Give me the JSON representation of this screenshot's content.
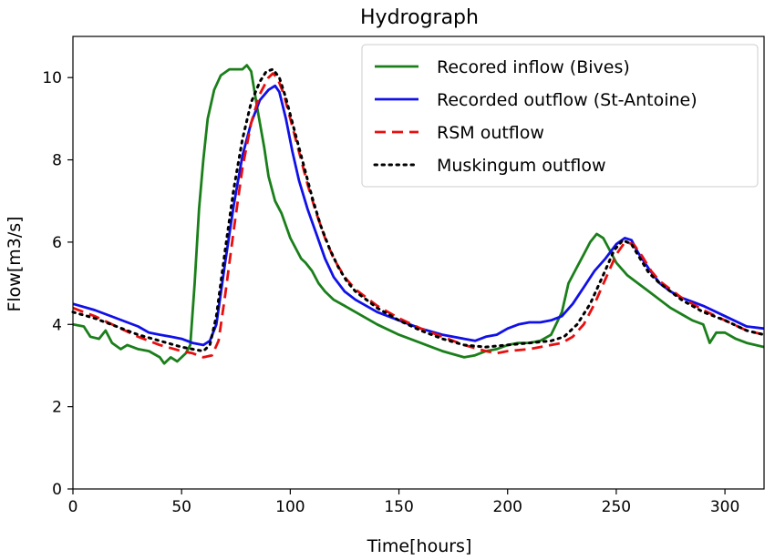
{
  "chart_data": {
    "type": "line",
    "title": "Hydrograph",
    "xlabel": "Time[hours]",
    "ylabel": "Flow[m3/s]",
    "xlim": [
      0,
      318
    ],
    "ylim": [
      0,
      11
    ],
    "xticks": [
      0,
      50,
      100,
      150,
      200,
      250,
      300
    ],
    "yticks": [
      0,
      2,
      4,
      6,
      8,
      10
    ],
    "grid": false,
    "legend_position": "top-right",
    "series": [
      {
        "name": "Recored inflow (Bives)",
        "color": "#1a7f1a",
        "style": "solid",
        "points": [
          [
            0,
            4.0
          ],
          [
            5,
            3.95
          ],
          [
            8,
            3.7
          ],
          [
            12,
            3.65
          ],
          [
            15,
            3.85
          ],
          [
            18,
            3.55
          ],
          [
            22,
            3.4
          ],
          [
            25,
            3.5
          ],
          [
            30,
            3.4
          ],
          [
            35,
            3.35
          ],
          [
            40,
            3.2
          ],
          [
            42,
            3.05
          ],
          [
            45,
            3.2
          ],
          [
            48,
            3.1
          ],
          [
            52,
            3.3
          ],
          [
            54,
            3.5
          ],
          [
            56,
            5.0
          ],
          [
            58,
            6.8
          ],
          [
            60,
            8.0
          ],
          [
            62,
            9.0
          ],
          [
            65,
            9.7
          ],
          [
            68,
            10.05
          ],
          [
            72,
            10.2
          ],
          [
            75,
            10.2
          ],
          [
            78,
            10.2
          ],
          [
            80,
            10.3
          ],
          [
            82,
            10.15
          ],
          [
            85,
            9.2
          ],
          [
            88,
            8.3
          ],
          [
            90,
            7.6
          ],
          [
            93,
            7.0
          ],
          [
            96,
            6.7
          ],
          [
            100,
            6.1
          ],
          [
            103,
            5.8
          ],
          [
            105,
            5.6
          ],
          [
            107,
            5.5
          ],
          [
            110,
            5.3
          ],
          [
            113,
            5.0
          ],
          [
            116,
            4.8
          ],
          [
            120,
            4.6
          ],
          [
            125,
            4.45
          ],
          [
            130,
            4.3
          ],
          [
            140,
            4.0
          ],
          [
            150,
            3.75
          ],
          [
            160,
            3.55
          ],
          [
            170,
            3.35
          ],
          [
            180,
            3.2
          ],
          [
            185,
            3.25
          ],
          [
            190,
            3.35
          ],
          [
            195,
            3.4
          ],
          [
            200,
            3.5
          ],
          [
            205,
            3.55
          ],
          [
            210,
            3.55
          ],
          [
            215,
            3.6
          ],
          [
            220,
            3.75
          ],
          [
            225,
            4.3
          ],
          [
            228,
            5.0
          ],
          [
            232,
            5.4
          ],
          [
            235,
            5.7
          ],
          [
            238,
            6.0
          ],
          [
            241,
            6.2
          ],
          [
            244,
            6.1
          ],
          [
            247,
            5.8
          ],
          [
            250,
            5.5
          ],
          [
            255,
            5.2
          ],
          [
            260,
            5.0
          ],
          [
            265,
            4.8
          ],
          [
            270,
            4.6
          ],
          [
            275,
            4.4
          ],
          [
            280,
            4.25
          ],
          [
            285,
            4.1
          ],
          [
            290,
            4.0
          ],
          [
            293,
            3.55
          ],
          [
            296,
            3.8
          ],
          [
            300,
            3.8
          ],
          [
            305,
            3.65
          ],
          [
            310,
            3.55
          ],
          [
            318,
            3.45
          ]
        ]
      },
      {
        "name": "Recorded outflow (St-Antoine)",
        "color": "#1010e8",
        "style": "solid",
        "points": [
          [
            0,
            4.5
          ],
          [
            10,
            4.35
          ],
          [
            20,
            4.15
          ],
          [
            30,
            3.95
          ],
          [
            35,
            3.8
          ],
          [
            40,
            3.75
          ],
          [
            45,
            3.7
          ],
          [
            50,
            3.65
          ],
          [
            55,
            3.55
          ],
          [
            60,
            3.5
          ],
          [
            63,
            3.6
          ],
          [
            66,
            4.0
          ],
          [
            70,
            5.5
          ],
          [
            74,
            6.9
          ],
          [
            78,
            8.1
          ],
          [
            82,
            8.9
          ],
          [
            86,
            9.45
          ],
          [
            90,
            9.7
          ],
          [
            93,
            9.8
          ],
          [
            95,
            9.65
          ],
          [
            98,
            9.0
          ],
          [
            101,
            8.2
          ],
          [
            104,
            7.5
          ],
          [
            108,
            6.8
          ],
          [
            112,
            6.2
          ],
          [
            116,
            5.6
          ],
          [
            120,
            5.15
          ],
          [
            125,
            4.8
          ],
          [
            130,
            4.6
          ],
          [
            140,
            4.3
          ],
          [
            150,
            4.1
          ],
          [
            160,
            3.9
          ],
          [
            170,
            3.75
          ],
          [
            180,
            3.65
          ],
          [
            185,
            3.6
          ],
          [
            190,
            3.7
          ],
          [
            195,
            3.75
          ],
          [
            200,
            3.9
          ],
          [
            205,
            4.0
          ],
          [
            210,
            4.05
          ],
          [
            215,
            4.05
          ],
          [
            220,
            4.1
          ],
          [
            225,
            4.2
          ],
          [
            230,
            4.5
          ],
          [
            235,
            4.9
          ],
          [
            240,
            5.3
          ],
          [
            245,
            5.6
          ],
          [
            250,
            5.95
          ],
          [
            254,
            6.1
          ],
          [
            257,
            6.05
          ],
          [
            260,
            5.75
          ],
          [
            265,
            5.35
          ],
          [
            270,
            5.0
          ],
          [
            275,
            4.8
          ],
          [
            280,
            4.65
          ],
          [
            290,
            4.45
          ],
          [
            300,
            4.2
          ],
          [
            310,
            3.95
          ],
          [
            318,
            3.9
          ]
        ]
      },
      {
        "name": "RSM outflow",
        "color": "#e80e0e",
        "style": "dashed",
        "points": [
          [
            0,
            4.4
          ],
          [
            10,
            4.2
          ],
          [
            20,
            3.95
          ],
          [
            30,
            3.7
          ],
          [
            40,
            3.5
          ],
          [
            50,
            3.35
          ],
          [
            55,
            3.3
          ],
          [
            60,
            3.2
          ],
          [
            64,
            3.25
          ],
          [
            67,
            3.6
          ],
          [
            70,
            4.7
          ],
          [
            74,
            6.3
          ],
          [
            78,
            7.8
          ],
          [
            82,
            8.9
          ],
          [
            86,
            9.6
          ],
          [
            90,
            10.0
          ],
          [
            92,
            10.1
          ],
          [
            94,
            10.0
          ],
          [
            97,
            9.6
          ],
          [
            100,
            9.0
          ],
          [
            104,
            8.2
          ],
          [
            108,
            7.4
          ],
          [
            112,
            6.7
          ],
          [
            116,
            6.1
          ],
          [
            120,
            5.6
          ],
          [
            125,
            5.15
          ],
          [
            130,
            4.85
          ],
          [
            140,
            4.45
          ],
          [
            150,
            4.15
          ],
          [
            160,
            3.9
          ],
          [
            170,
            3.7
          ],
          [
            180,
            3.5
          ],
          [
            190,
            3.35
          ],
          [
            195,
            3.3
          ],
          [
            200,
            3.35
          ],
          [
            210,
            3.4
          ],
          [
            220,
            3.5
          ],
          [
            225,
            3.55
          ],
          [
            230,
            3.7
          ],
          [
            235,
            4.0
          ],
          [
            240,
            4.5
          ],
          [
            245,
            5.1
          ],
          [
            250,
            5.7
          ],
          [
            254,
            6.0
          ],
          [
            258,
            5.95
          ],
          [
            262,
            5.65
          ],
          [
            266,
            5.3
          ],
          [
            270,
            5.05
          ],
          [
            275,
            4.85
          ],
          [
            280,
            4.65
          ],
          [
            290,
            4.35
          ],
          [
            300,
            4.1
          ],
          [
            310,
            3.85
          ],
          [
            318,
            3.75
          ]
        ]
      },
      {
        "name": "Muskingum outflow",
        "color": "#000000",
        "style": "dotted",
        "points": [
          [
            0,
            4.3
          ],
          [
            10,
            4.15
          ],
          [
            20,
            3.95
          ],
          [
            30,
            3.75
          ],
          [
            40,
            3.6
          ],
          [
            50,
            3.45
          ],
          [
            55,
            3.4
          ],
          [
            60,
            3.35
          ],
          [
            63,
            3.5
          ],
          [
            66,
            4.2
          ],
          [
            70,
            5.8
          ],
          [
            74,
            7.3
          ],
          [
            78,
            8.5
          ],
          [
            82,
            9.4
          ],
          [
            86,
            9.9
          ],
          [
            89,
            10.15
          ],
          [
            92,
            10.2
          ],
          [
            95,
            10.0
          ],
          [
            98,
            9.5
          ],
          [
            102,
            8.7
          ],
          [
            106,
            7.9
          ],
          [
            110,
            7.1
          ],
          [
            114,
            6.4
          ],
          [
            118,
            5.85
          ],
          [
            122,
            5.4
          ],
          [
            126,
            5.05
          ],
          [
            130,
            4.8
          ],
          [
            140,
            4.4
          ],
          [
            150,
            4.1
          ],
          [
            160,
            3.85
          ],
          [
            170,
            3.65
          ],
          [
            180,
            3.5
          ],
          [
            190,
            3.45
          ],
          [
            200,
            3.5
          ],
          [
            210,
            3.55
          ],
          [
            220,
            3.6
          ],
          [
            226,
            3.7
          ],
          [
            232,
            4.0
          ],
          [
            238,
            4.5
          ],
          [
            244,
            5.2
          ],
          [
            249,
            5.8
          ],
          [
            253,
            6.05
          ],
          [
            257,
            5.95
          ],
          [
            261,
            5.6
          ],
          [
            265,
            5.25
          ],
          [
            270,
            5.0
          ],
          [
            275,
            4.8
          ],
          [
            280,
            4.6
          ],
          [
            290,
            4.3
          ],
          [
            300,
            4.1
          ],
          [
            310,
            3.85
          ],
          [
            318,
            3.75
          ]
        ]
      }
    ]
  }
}
